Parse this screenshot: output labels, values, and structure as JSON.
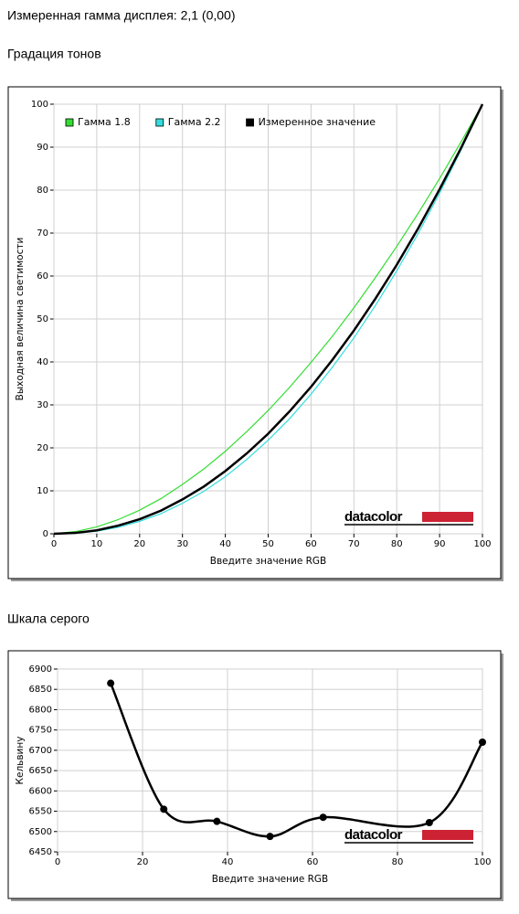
{
  "heading": "Измеренная гамма дисплея: 2,1 (0,00)",
  "chart_data": [
    {
      "type": "line",
      "title": "Градация тонов",
      "x_label": "Введите значение RGB",
      "y_label": "Выходная величина светимости",
      "watermark": "datacolor",
      "x": [
        0,
        5,
        10,
        15,
        20,
        25,
        30,
        35,
        40,
        45,
        50,
        55,
        60,
        65,
        70,
        75,
        80,
        85,
        90,
        95,
        100
      ],
      "series": [
        {
          "name": "Гамма 1.8",
          "color": "#33dd33",
          "values": [
            0,
            0.5,
            1.6,
            3.3,
            5.5,
            8.2,
            11.5,
            15.1,
            19.2,
            23.8,
            28.7,
            34.1,
            39.9,
            46.0,
            52.6,
            59.6,
            66.9,
            74.6,
            82.7,
            91.2,
            100
          ]
        },
        {
          "name": "Гамма 2.2",
          "color": "#33dddd",
          "values": [
            0,
            0.1,
            0.6,
            1.5,
            2.9,
            4.7,
            7.1,
            9.9,
            13.3,
            17.3,
            21.8,
            26.8,
            32.5,
            38.8,
            45.6,
            53.1,
            61.2,
            69.9,
            79.3,
            89.3,
            100
          ]
        },
        {
          "name": "Измеренное значение",
          "color": "#000000",
          "values": [
            0,
            0.2,
            0.8,
            1.9,
            3.4,
            5.4,
            8.0,
            11.0,
            14.6,
            18.7,
            23.3,
            28.5,
            34.2,
            40.5,
            47.3,
            54.7,
            62.6,
            71.1,
            80.2,
            89.8,
            100
          ]
        }
      ],
      "xlim": [
        0,
        100
      ],
      "xticks": [
        0,
        10,
        20,
        30,
        40,
        50,
        60,
        70,
        80,
        90,
        100
      ],
      "ylim": [
        0,
        100
      ],
      "yticks": [
        0,
        10,
        20,
        30,
        40,
        50,
        60,
        70,
        80,
        90,
        100
      ],
      "grid": true,
      "legend": "upper left"
    },
    {
      "type": "line",
      "title": "Шкала серого",
      "x_label": "Введите значение RGB",
      "y_label": "Кельвину",
      "watermark": "datacolor",
      "x": [
        12.5,
        25,
        37.5,
        50,
        62.5,
        87.5,
        100
      ],
      "series": [
        {
          "color": "#000000",
          "values": [
            6865,
            6555,
            6525,
            6488,
            6535,
            6522,
            6720
          ]
        }
      ],
      "xlim": [
        0,
        100
      ],
      "xticks": [
        0,
        20,
        40,
        60,
        80,
        100
      ],
      "ylim": [
        6450,
        6900
      ],
      "yticks": [
        6450,
        6500,
        6550,
        6600,
        6650,
        6700,
        6750,
        6800,
        6850,
        6900
      ],
      "grid": true,
      "smooth": true,
      "markers": true
    }
  ]
}
